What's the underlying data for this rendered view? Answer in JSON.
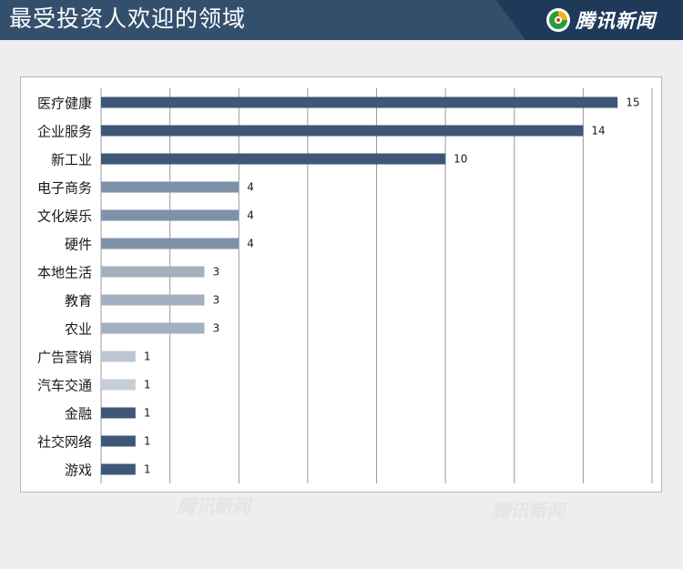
{
  "header": {
    "title": "最受投资人欢迎的领域",
    "brand": "腾讯新闻",
    "background_color": "#344f6c",
    "brand_background_color": "#1f3a59"
  },
  "watermark": {
    "text": "腾讯新闻"
  },
  "chart_data": {
    "type": "bar",
    "orientation": "horizontal",
    "title": "",
    "xlabel": "",
    "ylabel": "",
    "categories": [
      "医疗健康",
      "企业服务",
      "新工业",
      "电子商务",
      "文化娱乐",
      "硬件",
      "本地生活",
      "教育",
      "农业",
      "广告营销",
      "汽车交通",
      "金融",
      "社交网络",
      "游戏"
    ],
    "values": [
      15,
      14,
      10,
      4,
      4,
      4,
      3,
      3,
      3,
      1,
      1,
      1,
      1,
      1
    ],
    "bar_colors": [
      "#3e5677",
      "#3e5677",
      "#3e5677",
      "#7f91a8",
      "#7f91a8",
      "#7f91a8",
      "#a3b0c0",
      "#a3b0c0",
      "#a3b0c0",
      "#bcc5d1",
      "#c6ced8",
      "#3e5677",
      "#3e5677",
      "#3e5677"
    ],
    "xlim": [
      0,
      16
    ],
    "x_gridlines": [
      2,
      4,
      6,
      8,
      10,
      12,
      14,
      16
    ],
    "grid": true,
    "legend": "none"
  }
}
